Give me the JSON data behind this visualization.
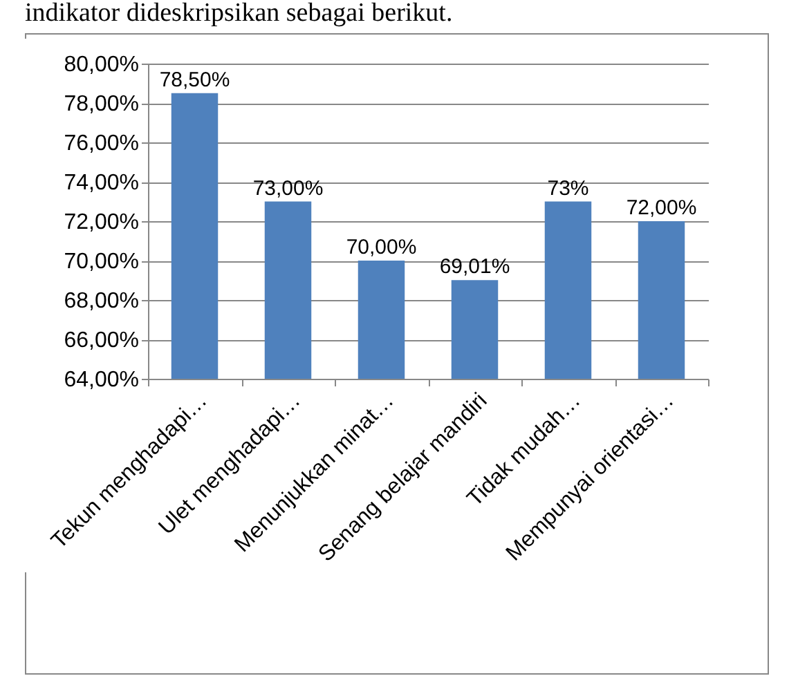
{
  "chart_data": {
    "type": "bar",
    "annotations": [
      "indikator dideskripsikan sebagai berikut."
    ],
    "categories": [
      "Tekun menghadapi…",
      "Ulet menghadapi…",
      "Menunjukkan minat…",
      "Senang belajar mandiri",
      "Tidak mudah…",
      "Mempunyai orientasi…"
    ],
    "values": [
      78.5,
      73,
      70,
      69.01,
      73,
      72
    ],
    "value_labels": [
      "78,50%",
      "73,00%",
      "70,00%",
      "69,01%",
      "73%",
      "72,00%"
    ],
    "color": "#4f81bd",
    "ylim": [
      64,
      80
    ],
    "yticks": [
      {
        "value": 64,
        "label": "64,00%"
      },
      {
        "value": 66,
        "label": "66,00%"
      },
      {
        "value": 68,
        "label": "68,00%"
      },
      {
        "value": 70,
        "label": "70,00%"
      },
      {
        "value": 72,
        "label": "72,00%"
      },
      {
        "value": 74,
        "label": "74,00%"
      },
      {
        "value": 76,
        "label": "76,00%"
      },
      {
        "value": 78,
        "label": "78,00%"
      },
      {
        "value": 80,
        "label": "80,00%"
      }
    ],
    "grid": "y"
  }
}
